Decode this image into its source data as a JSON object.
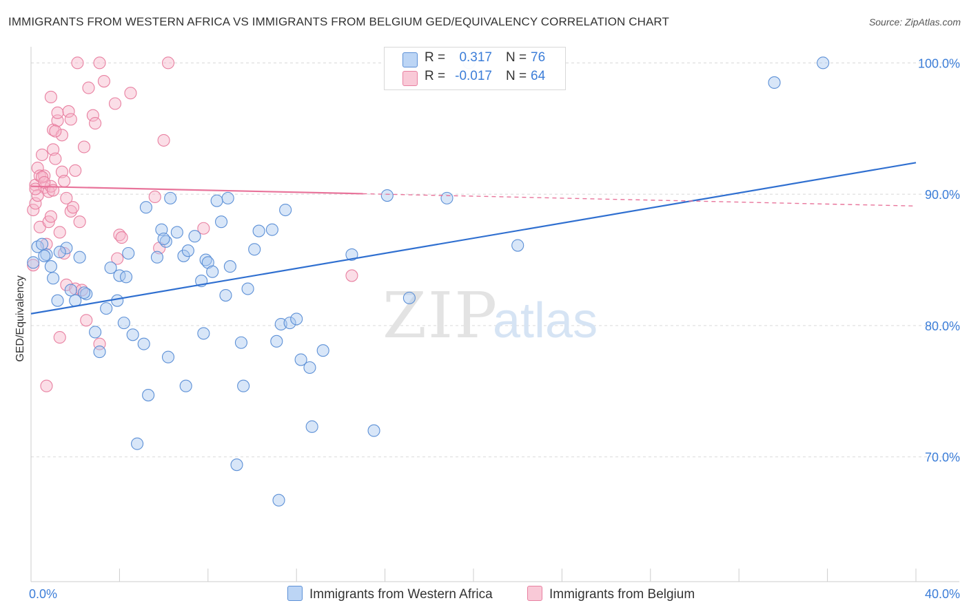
{
  "title": "IMMIGRANTS FROM WESTERN AFRICA VS IMMIGRANTS FROM BELGIUM GED/EQUIVALENCY CORRELATION CHART",
  "source": "Source: ZipAtlas.com",
  "watermark": {
    "zip": "ZIP",
    "atlas": "atlas"
  },
  "legend_top": {
    "rows": [
      {
        "r_label": "R =",
        "r_value": "0.317",
        "n_label": "N =",
        "n_value": "76"
      },
      {
        "r_label": "R =",
        "r_value": "-0.017",
        "n_label": "N =",
        "n_value": "64"
      }
    ]
  },
  "legend_bottom": {
    "items": [
      {
        "label": "Immigrants from Western Africa"
      },
      {
        "label": "Immigrants from Belgium"
      }
    ]
  },
  "colors": {
    "blue_fill": "#a8c8f0",
    "blue_stroke": "#5b8fd6",
    "blue_line": "#2f6fd0",
    "pink_fill": "#f7b6c9",
    "pink_stroke": "#e87fa0",
    "pink_line": "#e8739a",
    "axis_label": "#3b7dd8",
    "grid": "#d8d8d8"
  },
  "chart_data": {
    "type": "scatter",
    "ylabel": "GED/Equivalency",
    "xlim": [
      0,
      40
    ],
    "ylim": [
      60.5,
      101.5
    ],
    "x_ticks": [
      {
        "value": 0,
        "label": "0.0%"
      },
      {
        "value": 40,
        "label": "40.0%"
      }
    ],
    "y_ticks": [
      {
        "value": 70,
        "label": "70.0%"
      },
      {
        "value": 80,
        "label": "80.0%"
      },
      {
        "value": 90,
        "label": "90.0%"
      },
      {
        "value": 100,
        "label": "100.0%"
      }
    ],
    "series": [
      {
        "name": "Immigrants from Western Africa",
        "color": "blue",
        "points": [
          [
            0.1,
            84.8
          ],
          [
            0.3,
            86.0
          ],
          [
            0.5,
            86.2
          ],
          [
            0.7,
            85.4
          ],
          [
            0.9,
            84.5
          ],
          [
            1.0,
            83.6
          ],
          [
            1.2,
            81.9
          ],
          [
            1.6,
            85.9
          ],
          [
            1.8,
            82.7
          ],
          [
            2.0,
            81.9
          ],
          [
            2.2,
            85.2
          ],
          [
            2.5,
            82.4
          ],
          [
            2.9,
            79.5
          ],
          [
            3.1,
            78.0
          ],
          [
            3.4,
            81.3
          ],
          [
            3.6,
            84.4
          ],
          [
            3.9,
            81.9
          ],
          [
            4.0,
            83.8
          ],
          [
            4.2,
            80.2
          ],
          [
            4.4,
            85.5
          ],
          [
            4.6,
            79.3
          ],
          [
            4.8,
            71.0
          ],
          [
            5.1,
            78.6
          ],
          [
            5.2,
            89.0
          ],
          [
            5.3,
            74.7
          ],
          [
            5.7,
            85.2
          ],
          [
            5.9,
            87.3
          ],
          [
            6.1,
            86.4
          ],
          [
            6.2,
            77.6
          ],
          [
            6.3,
            89.7
          ],
          [
            6.6,
            87.1
          ],
          [
            6.9,
            85.3
          ],
          [
            7.1,
            85.7
          ],
          [
            7.0,
            75.4
          ],
          [
            7.4,
            86.8
          ],
          [
            7.7,
            83.4
          ],
          [
            7.8,
            79.4
          ],
          [
            7.9,
            85.0
          ],
          [
            8.0,
            84.8
          ],
          [
            8.2,
            84.1
          ],
          [
            8.4,
            89.5
          ],
          [
            8.6,
            87.9
          ],
          [
            8.8,
            82.3
          ],
          [
            8.9,
            89.7
          ],
          [
            9.0,
            84.5
          ],
          [
            9.3,
            69.4
          ],
          [
            9.5,
            78.7
          ],
          [
            9.6,
            75.4
          ],
          [
            9.8,
            82.8
          ],
          [
            10.1,
            85.8
          ],
          [
            10.3,
            87.2
          ],
          [
            10.9,
            87.3
          ],
          [
            11.1,
            78.8
          ],
          [
            11.3,
            80.1
          ],
          [
            11.2,
            66.7
          ],
          [
            11.5,
            88.8
          ],
          [
            11.7,
            80.2
          ],
          [
            12.0,
            80.5
          ],
          [
            12.2,
            77.4
          ],
          [
            12.6,
            76.8
          ],
          [
            12.7,
            72.3
          ],
          [
            13.2,
            78.1
          ],
          [
            14.5,
            85.4
          ],
          [
            15.5,
            72.0
          ],
          [
            16.1,
            89.9
          ],
          [
            17.1,
            82.1
          ],
          [
            18.8,
            89.7
          ],
          [
            19.8,
            100.0
          ],
          [
            22.0,
            86.1
          ],
          [
            33.6,
            98.5
          ],
          [
            35.8,
            100.0
          ],
          [
            1.3,
            85.6
          ],
          [
            2.4,
            82.5
          ],
          [
            4.3,
            83.7
          ],
          [
            6.0,
            86.6
          ],
          [
            0.6,
            85.3
          ]
        ],
        "trend": {
          "x": [
            0,
            40
          ],
          "y": [
            80.9,
            92.4
          ]
        }
      },
      {
        "name": "Immigrants from Belgium",
        "color": "pink",
        "points": [
          [
            0.1,
            84.6
          ],
          [
            0.1,
            88.8
          ],
          [
            0.2,
            89.3
          ],
          [
            0.2,
            90.7
          ],
          [
            0.3,
            92.0
          ],
          [
            0.4,
            91.4
          ],
          [
            0.4,
            87.5
          ],
          [
            0.5,
            93.0
          ],
          [
            0.6,
            91.4
          ],
          [
            0.6,
            90.5
          ],
          [
            0.7,
            86.2
          ],
          [
            0.7,
            75.4
          ],
          [
            0.8,
            90.2
          ],
          [
            0.8,
            87.9
          ],
          [
            0.9,
            88.3
          ],
          [
            0.9,
            97.4
          ],
          [
            1.0,
            93.4
          ],
          [
            1.0,
            94.9
          ],
          [
            1.1,
            92.7
          ],
          [
            1.2,
            95.6
          ],
          [
            1.2,
            96.2
          ],
          [
            1.3,
            87.1
          ],
          [
            1.3,
            79.1
          ],
          [
            1.4,
            91.7
          ],
          [
            1.4,
            94.5
          ],
          [
            1.5,
            85.5
          ],
          [
            1.6,
            89.7
          ],
          [
            1.6,
            83.1
          ],
          [
            1.7,
            96.3
          ],
          [
            1.8,
            95.7
          ],
          [
            1.8,
            88.7
          ],
          [
            1.9,
            89.0
          ],
          [
            2.0,
            82.8
          ],
          [
            2.0,
            91.8
          ],
          [
            2.2,
            87.9
          ],
          [
            2.3,
            82.7
          ],
          [
            2.4,
            93.6
          ],
          [
            2.5,
            80.4
          ],
          [
            2.6,
            98.1
          ],
          [
            2.8,
            96.0
          ],
          [
            2.9,
            95.4
          ],
          [
            3.1,
            78.6
          ],
          [
            3.1,
            100.0
          ],
          [
            3.3,
            98.6
          ],
          [
            3.8,
            96.9
          ],
          [
            3.9,
            85.1
          ],
          [
            4.0,
            86.9
          ],
          [
            4.1,
            86.7
          ],
          [
            4.5,
            97.7
          ],
          [
            5.6,
            89.8
          ],
          [
            5.8,
            85.9
          ],
          [
            6.0,
            94.1
          ],
          [
            6.2,
            100.0
          ],
          [
            7.8,
            87.4
          ],
          [
            14.5,
            83.8
          ],
          [
            0.3,
            89.9
          ],
          [
            0.5,
            91.3
          ],
          [
            0.9,
            90.6
          ],
          [
            1.1,
            94.8
          ],
          [
            1.5,
            91.0
          ],
          [
            2.1,
            100.0
          ],
          [
            0.2,
            90.4
          ],
          [
            0.6,
            90.9
          ],
          [
            1.0,
            90.3
          ]
        ],
        "trend": {
          "x": [
            0,
            40
          ],
          "y": [
            90.6,
            89.1
          ],
          "solid_until_x": 15.0
        }
      }
    ]
  }
}
